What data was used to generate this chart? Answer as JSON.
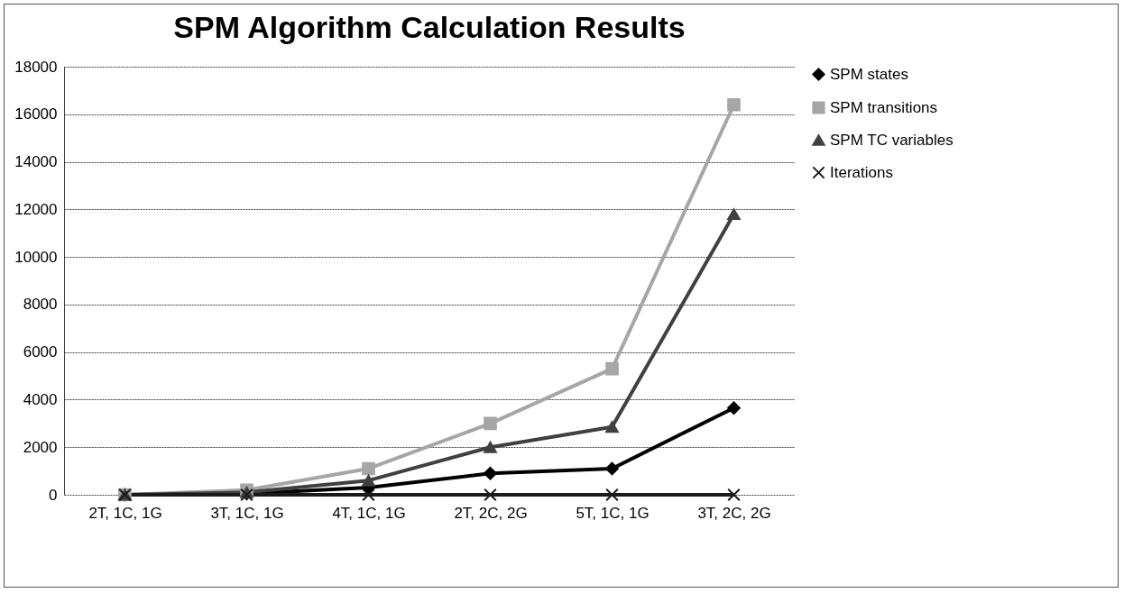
{
  "chart_data": {
    "type": "line",
    "title": "SPM Algorithm Calculation Results",
    "categories": [
      "2T, 1C, 1G",
      "3T, 1C, 1G",
      "4T, 1C, 1G",
      "2T, 2C, 2G",
      "5T, 1C, 1G",
      "3T, 2C, 2G"
    ],
    "series": [
      {
        "name": "SPM states",
        "color": "#000000",
        "marker": "diamond",
        "values": [
          0,
          50,
          300,
          900,
          1100,
          3650
        ]
      },
      {
        "name": "SPM transitions",
        "color": "#a6a6a6",
        "marker": "square",
        "values": [
          0,
          200,
          1100,
          3000,
          5300,
          16400
        ]
      },
      {
        "name": "SPM TC variables",
        "color": "#404040",
        "marker": "triangle",
        "values": [
          0,
          100,
          600,
          2000,
          2850,
          11800
        ]
      },
      {
        "name": "Iterations",
        "color": "#1a1a1a",
        "marker": "cross",
        "values": [
          0,
          0,
          0,
          0,
          0,
          0
        ]
      }
    ],
    "ylim": [
      0,
      18000
    ],
    "yticks": [
      0,
      2000,
      4000,
      6000,
      8000,
      10000,
      12000,
      14000,
      16000,
      18000
    ],
    "grid": "y",
    "legend": "right"
  }
}
